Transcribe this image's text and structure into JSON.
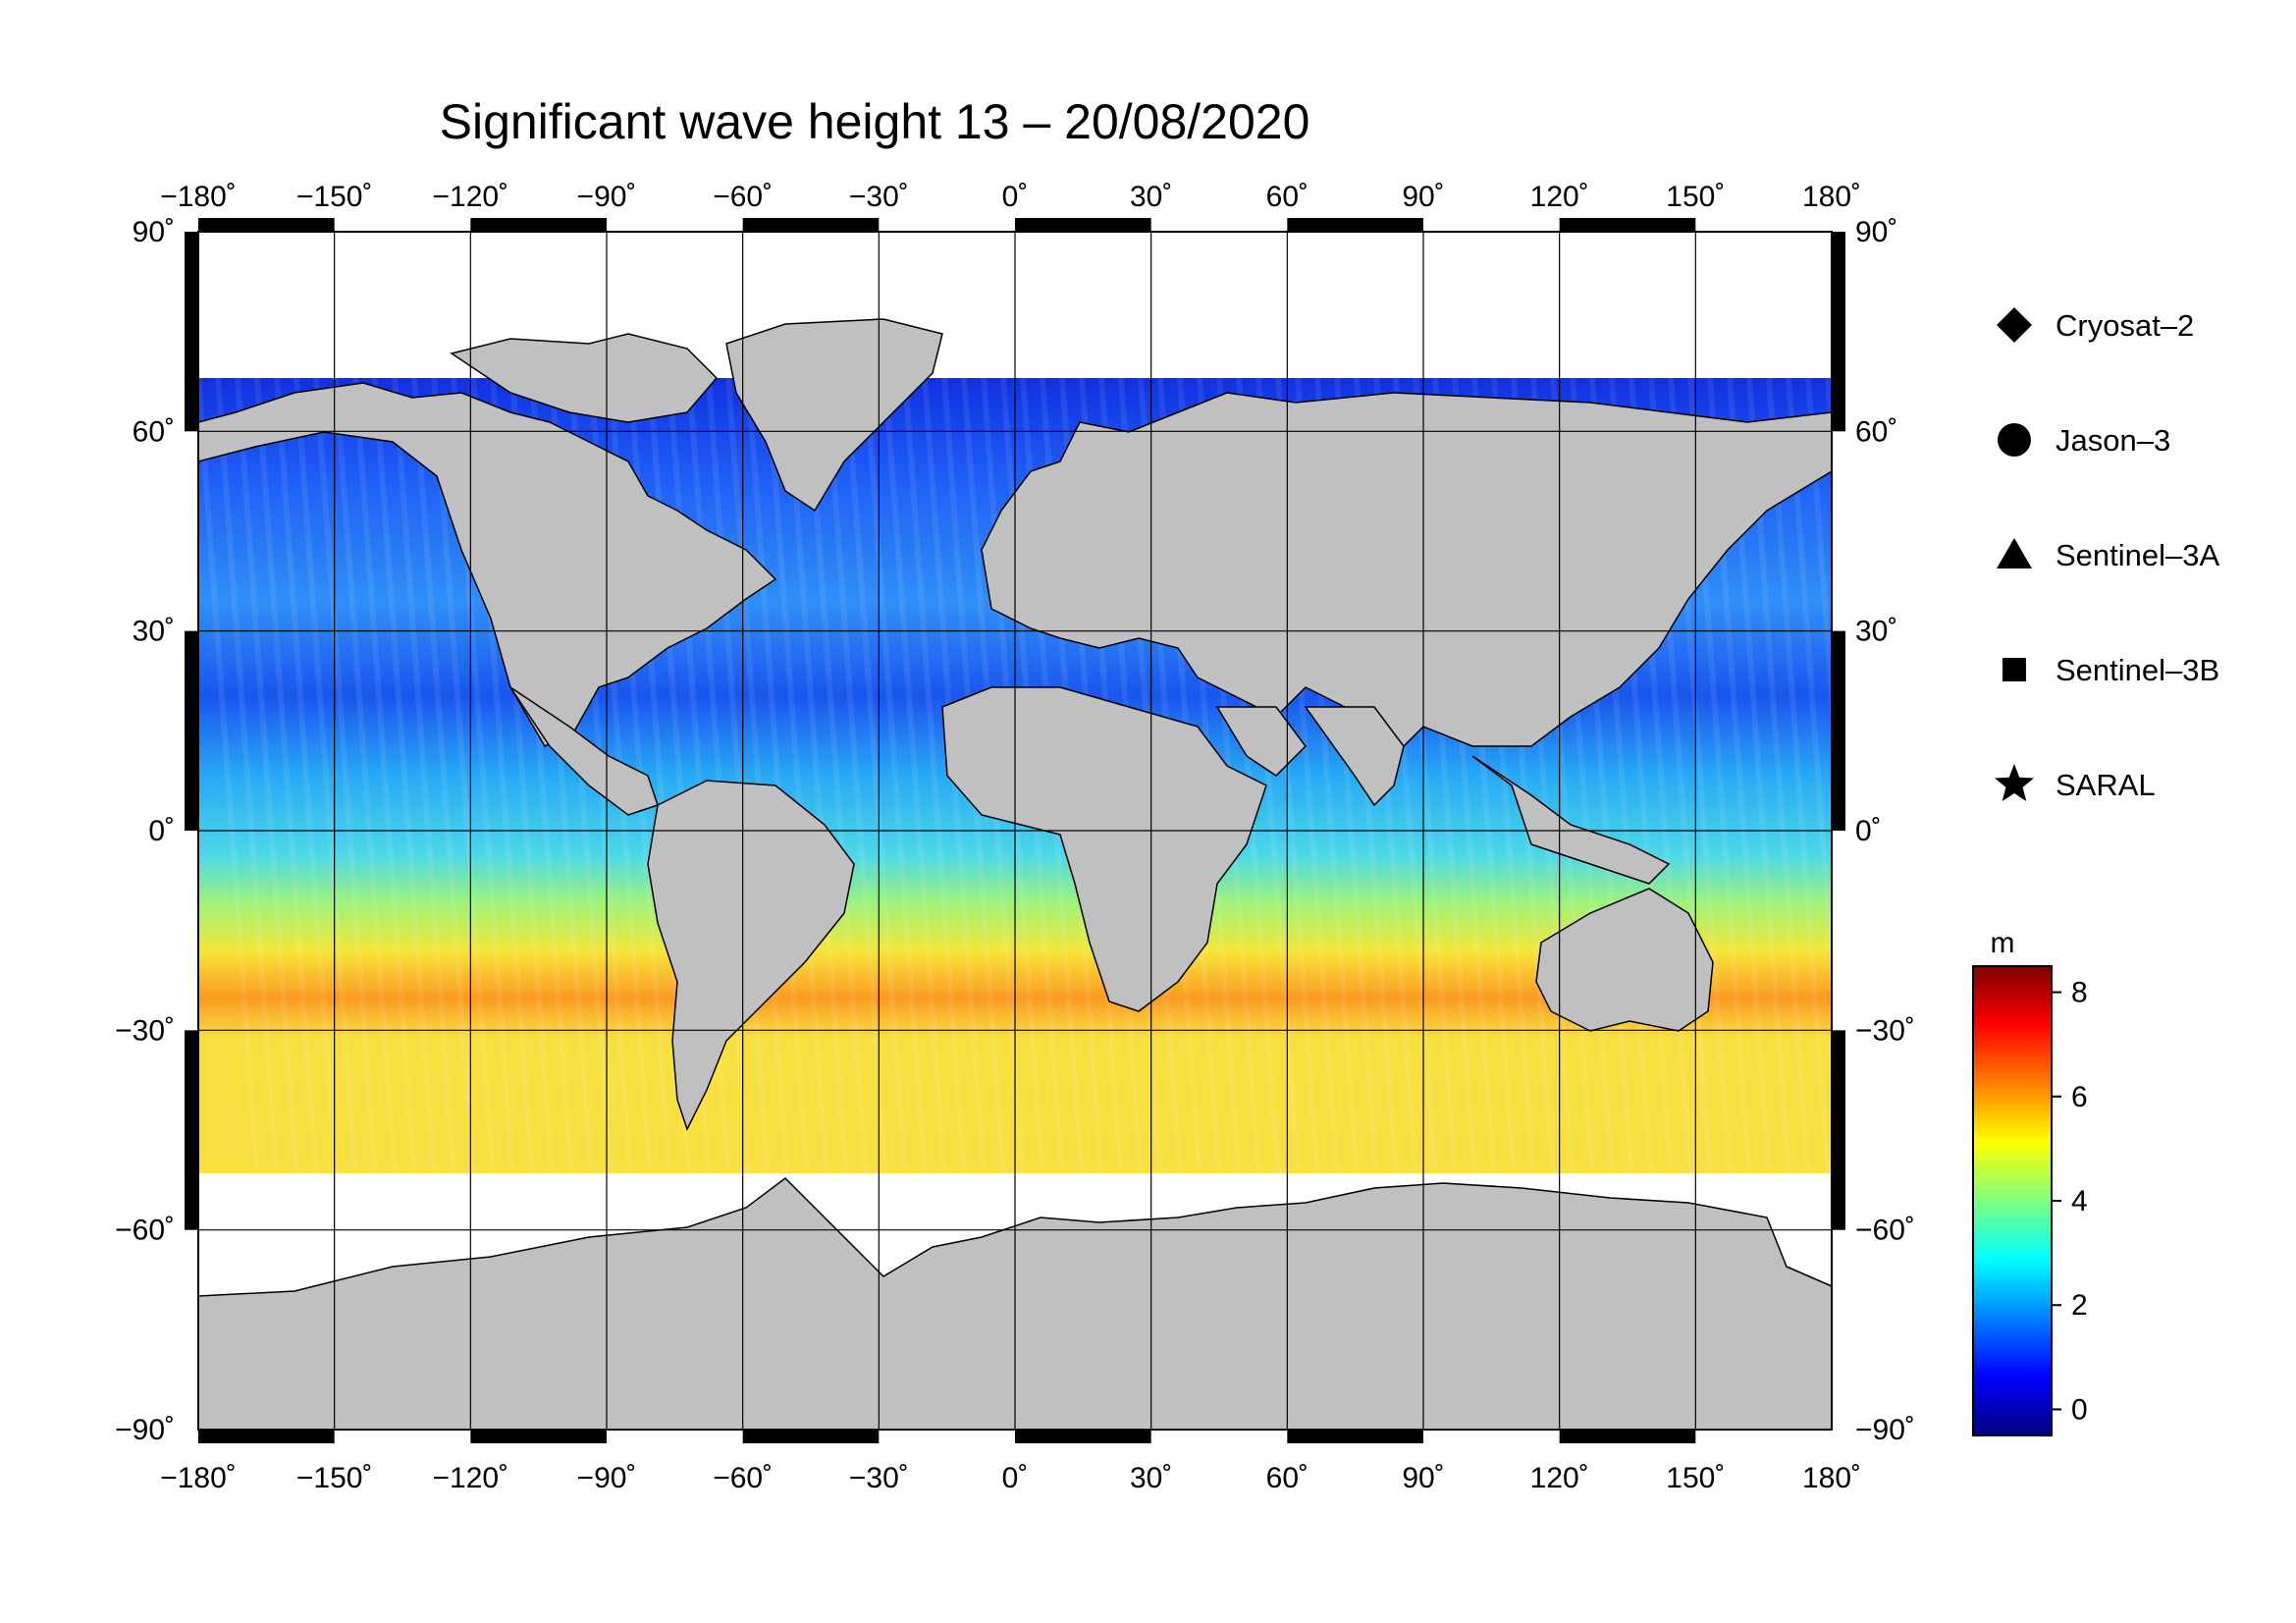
{
  "title": "Significant wave height 13 – 20/08/2020",
  "map": {
    "projection": "equirectangular",
    "lon_range": [
      -180,
      180
    ],
    "lat_range": [
      -90,
      90
    ],
    "lon_ticks": [
      -180,
      -150,
      -120,
      -90,
      -60,
      -30,
      0,
      30,
      60,
      90,
      120,
      150,
      180
    ],
    "lat_ticks": [
      90,
      60,
      30,
      0,
      -30,
      -60,
      -90
    ],
    "lon_tick_labels": [
      "−180˚",
      "−150˚",
      "−120˚",
      "−90˚",
      "−60˚",
      "−30˚",
      "0˚",
      "30˚",
      "60˚",
      "90˚",
      "120˚",
      "150˚",
      "180˚"
    ],
    "lat_tick_labels": [
      "90˚",
      "60˚",
      "30˚",
      "0˚",
      "−30˚",
      "−60˚",
      "−90˚"
    ],
    "grid": true,
    "land_color": "#c0c0c0",
    "ice_color": "#ffffff"
  },
  "legend": {
    "items": [
      {
        "label": "Cryosat–2",
        "symbol": "diamond"
      },
      {
        "label": "Jason–3",
        "symbol": "circle"
      },
      {
        "label": "Sentinel–3A",
        "symbol": "triangle"
      },
      {
        "label": "Sentinel–3B",
        "symbol": "square"
      },
      {
        "label": "SARAL",
        "symbol": "star"
      }
    ]
  },
  "colorbar": {
    "unit": "m",
    "range": [
      -0.5,
      8.5
    ],
    "ticks": [
      0,
      2,
      4,
      6,
      8
    ],
    "tick_labels": [
      "0",
      "2",
      "4",
      "6",
      "8"
    ],
    "colors": [
      "#00007f",
      "#0000ff",
      "#007fff",
      "#00ffff",
      "#7fff7f",
      "#ffff00",
      "#ff7f00",
      "#ff0000",
      "#7f0000"
    ]
  }
}
